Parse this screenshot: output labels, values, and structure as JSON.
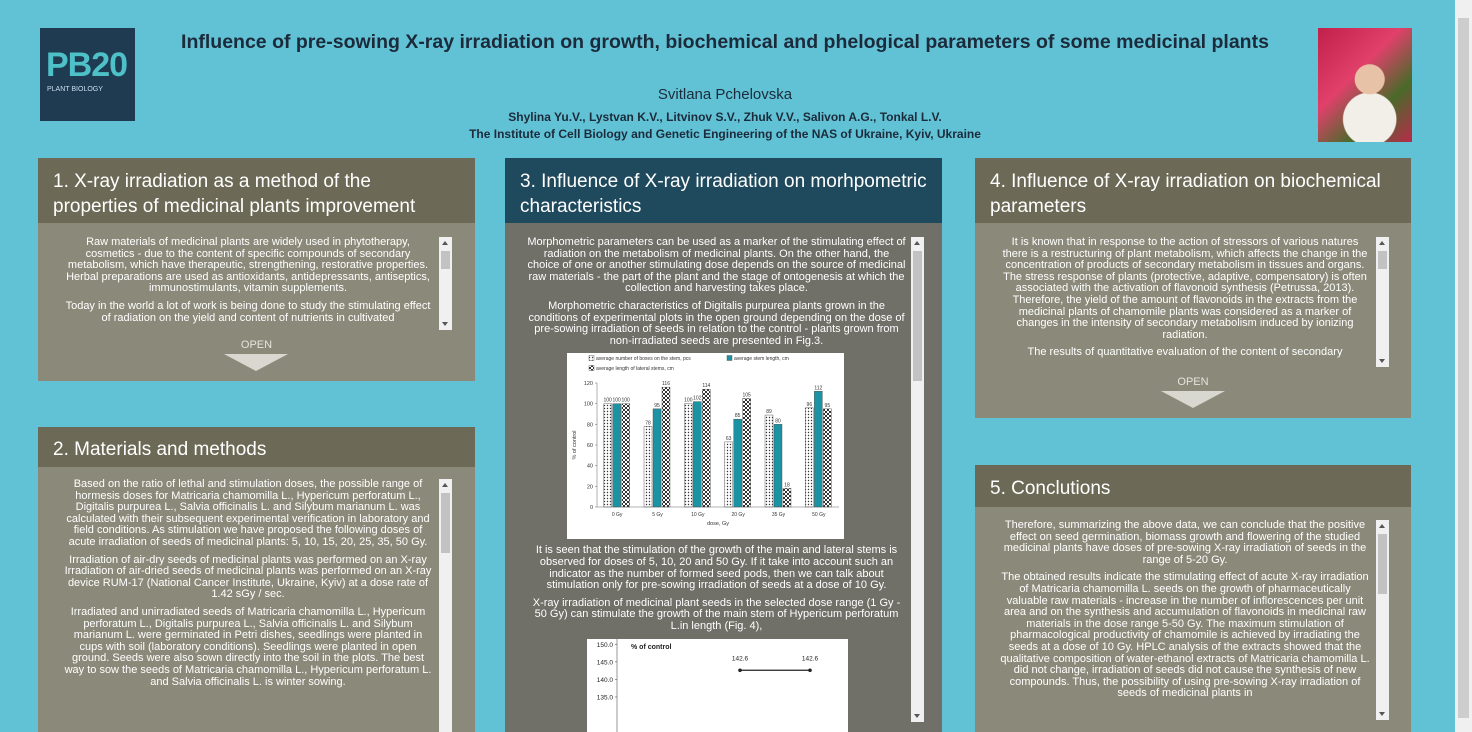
{
  "header": {
    "logo": {
      "mark": "PB20",
      "name": "PLANT BIOLOGY"
    },
    "title": "Influence of pre-sowing X-ray irradiation on growth, biochemical and phelogical parameters of some medicinal plants",
    "presenter": "Svitlana Pchelovska",
    "authors": "Shylina Yu.V., Lystvan K.V., Litvinov S.V., Zhuk V.V., Salivon A.G., Tonkal L.V.",
    "affiliation": "The Institute of Cell Biology and Genetic Engineering of the NAS of Ukraine, Kyiv, Ukraine"
  },
  "panels": [
    {
      "heading": "1. X-ray irradiation as a method of  the properties of medicinal plants improvement",
      "paragraphs": [
        "Raw materials of medicinal plants are widely used in phytotherapy, cosmetics - due to the content of specific compounds of secondary metabolism, which have therapeutic, strengthening, restorative properties. Herbal preparations are used as antioxidants, antidepressants, antiseptics, immunostimulants, vitamin supplements.",
        "Today in the world a lot of work is being done to study the stimulating effect of radiation on the yield and content of nutrients in cultivated"
      ],
      "button": "OPEN"
    },
    {
      "heading": "2. Materials and methods",
      "paragraphs": [
        "Based on the ratio of lethal and stimulation doses, the possible range of hormesis doses for Matricaria chamomilla L., Hypericum perforatum L., Digitalis purpurea L., Salvia officinalis L. and Silybum marianum L. was calculated with their subsequent experimental verification in laboratory and field conditions. As stimulation we have proposed the following doses of acute irradiation of seeds of medicinal plants: 5, 10, 15, 20, 25, 35, 50 Gy.",
        "Irradiation of air-dry seeds of medicinal plants was performed on an X-ray Irradiation of air-dried seeds of medicinal plants was performed on an X-ray device RUM-17 (National Cancer Institute, Ukraine, Kyiv) at a dose rate of 1.42 sGy / sec.",
        "Irradiated and unirradiated seeds of Matricaria chamomilla L., Hypericum perforatum L., Digitalis purpurea L., Salvia officinalis L. and Silybum marianum L. were germinated in Petri dishes, seedlings were planted in cups with soil (laboratory conditions). Seedlings were planted in open ground. Seeds were also sown directly into the soil in the plots. The best way to sow the seeds of Matricaria chamomilla L., Hypericum perforatum L. and Salvia officinalis L. is winter sowing."
      ]
    },
    {
      "heading": "3.  Influence of X-ray  irradiation on morhpometric characteristics",
      "paragraphs": [
        "Morphometric parameters can be used as a marker of the stimulating effect of radiation on the metabolism of medicinal plants. On the other hand, the choice of one or another stimulating dose depends on the source of medicinal raw materials - the part of the plant and the stage of ontogenesis at which the collection and harvesting takes place.",
        "Morphometric characteristics of Digitalis purpurea plants grown in the conditions of experimental plots in the open ground depending on the dose of pre-sowing irradiation of seeds in relation to the control - plants grown from non-irradiated seeds are presented in Fig.3.",
        "It is seen that the stimulation of the growth of the main and lateral stems is observed for doses of 5, 10, 20 and 50 Gy. If it take into account such an indicator as the number of formed seed pods, then we can talk about stimulation only for pre-sowing irradiation of seeds at a dose of 10 Gy.",
        "X-ray irradiation of medicinal plant seeds in the selected dose range (1 Gy - 50 Gy) can stimulate the growth of the main stem of Hypericum perforatum L.in length (Fig. 4),"
      ]
    },
    {
      "heading": "4. Influence of X-ray  irradiation on biochemical parameters",
      "paragraphs": [
        "It is known that in response to the action of stressors of various natures there is a restructuring of plant metabolism, which affects the change in the concentration of products of secondary metabolism in tissues and organs. The stress response of plants (protective, adaptive, compensatory) is often associated with the activation of flavonoid synthesis (Petrussa, 2013). Therefore, the yield of the amount of flavonoids in the extracts from the medicinal plants of chamomile plants was considered as a marker of changes in the intensity of secondary metabolism induced by ionizing radiation.",
        "The results of quantitative evaluation of the content of secondary"
      ],
      "button": "OPEN"
    },
    {
      "heading": "5. Conclutions",
      "paragraphs": [
        "Therefore, summarizing the above data, we can conclude that the positive effect on seed germination, biomass growth and flowering of the studied medicinal plants have doses of pre-sowing X-ray irradiation of seeds in the range of 5-20 Gy.",
        "The obtained results indicate the stimulating effect of acute X-ray irradiation of Matricaria chamomilla L. seeds on the growth of pharmaceutically valuable raw materials - increase in the number of inflorescences per unit area and on the synthesis and accumulation of flavonoids in medicinal raw materials in the dose range 5-50 Gy. The maximum stimulation of pharmacological productivity of chamomile is achieved by irradiating the seeds at a dose of 10 Gy. HPLC analysis of the extracts showed that the qualitative composition of water-ethanol extracts of Matricaria chamomilla L. did not change, irradiation of seeds did not cause the synthesis of new compounds. Thus, the possibility of using pre-sowing X-ray irradiation of seeds of medicinal plants in"
      ]
    }
  ],
  "chart_data": [
    {
      "type": "bar",
      "xlabel": "dose, Gy",
      "ylabel": "% of control",
      "categories": [
        "0 Gy",
        "5 Gy",
        "10 Gy",
        "20 Gy",
        "35 Gy",
        "50 Gy"
      ],
      "series": [
        {
          "name": "average number of boxes on the stem, pcs",
          "color": "#ffffff",
          "pattern": "dots",
          "values": [
            100,
            78,
            100,
            63,
            89,
            96
          ]
        },
        {
          "name": "average stem length, cm",
          "color": "#1c93a3",
          "pattern": "solid",
          "values": [
            100,
            95,
            102,
            85,
            80,
            112
          ]
        },
        {
          "name": "average length of lateral stems, cm",
          "color": "#ffffff",
          "pattern": "checker",
          "values": [
            100,
            116,
            114,
            105,
            18,
            95
          ]
        }
      ],
      "ylim": [
        0,
        120
      ],
      "yticks": [
        0,
        20,
        40,
        60,
        80,
        100,
        120
      ]
    },
    {
      "type": "line",
      "title": "% of control",
      "categories": [
        null,
        null
      ],
      "values": [
        142.6,
        142.6
      ],
      "color": "#222222",
      "ylim": [
        133,
        151.5
      ],
      "yticks": [
        {
          "value": 135,
          "label": "135.0"
        },
        {
          "value": 140,
          "label": "140.0"
        },
        {
          "value": 145,
          "label": "145.0"
        },
        {
          "value": 150,
          "label": "150.0"
        }
      ]
    }
  ]
}
